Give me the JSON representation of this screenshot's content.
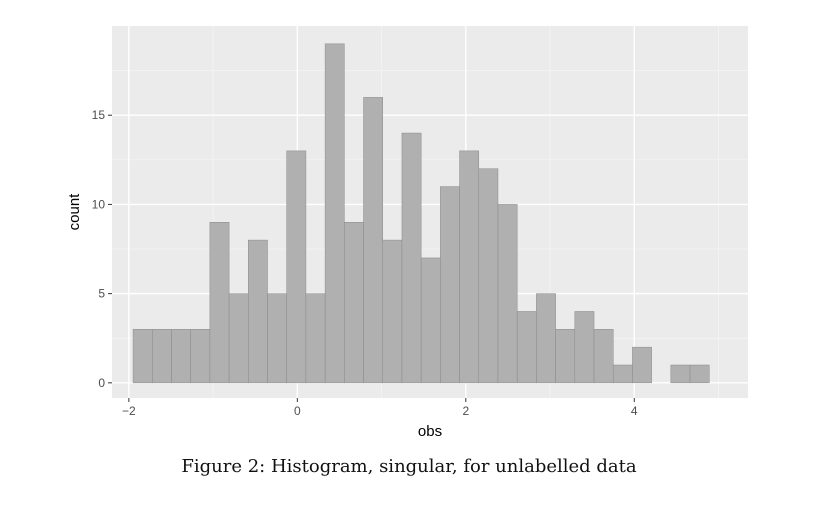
{
  "chart_data": {
    "type": "bar",
    "title": "",
    "xlabel": "obs",
    "ylabel": "count",
    "xlim": [
      -2.2,
      5.35
    ],
    "ylim": [
      -0.85,
      20
    ],
    "x_ticks": [
      -2,
      0,
      2,
      4
    ],
    "x_tick_labels": [
      "−2",
      "0",
      "2",
      "4"
    ],
    "x_minor_ticks": [
      -1,
      1,
      3,
      5
    ],
    "y_ticks": [
      0,
      5,
      10,
      15
    ],
    "y_tick_labels": [
      "0",
      "5",
      "10",
      "15"
    ],
    "y_minor_ticks": [
      2.5,
      7.5,
      12.5,
      17.5
    ],
    "grid": true,
    "panel_background": "#ebebeb",
    "bar_fill": "#b0b0b0",
    "bar_stroke": "#8a8a8a",
    "bins": {
      "start": -1.95,
      "width": 0.228,
      "counts": [
        3,
        3,
        3,
        3,
        9,
        5,
        8,
        5,
        13,
        5,
        19,
        9,
        16,
        8,
        14,
        7,
        11,
        13,
        12,
        10,
        4,
        5,
        3,
        4,
        3,
        1,
        2,
        0,
        1,
        1
      ]
    }
  },
  "caption": "Figure 2: Histogram, singular, for unlabelled data"
}
